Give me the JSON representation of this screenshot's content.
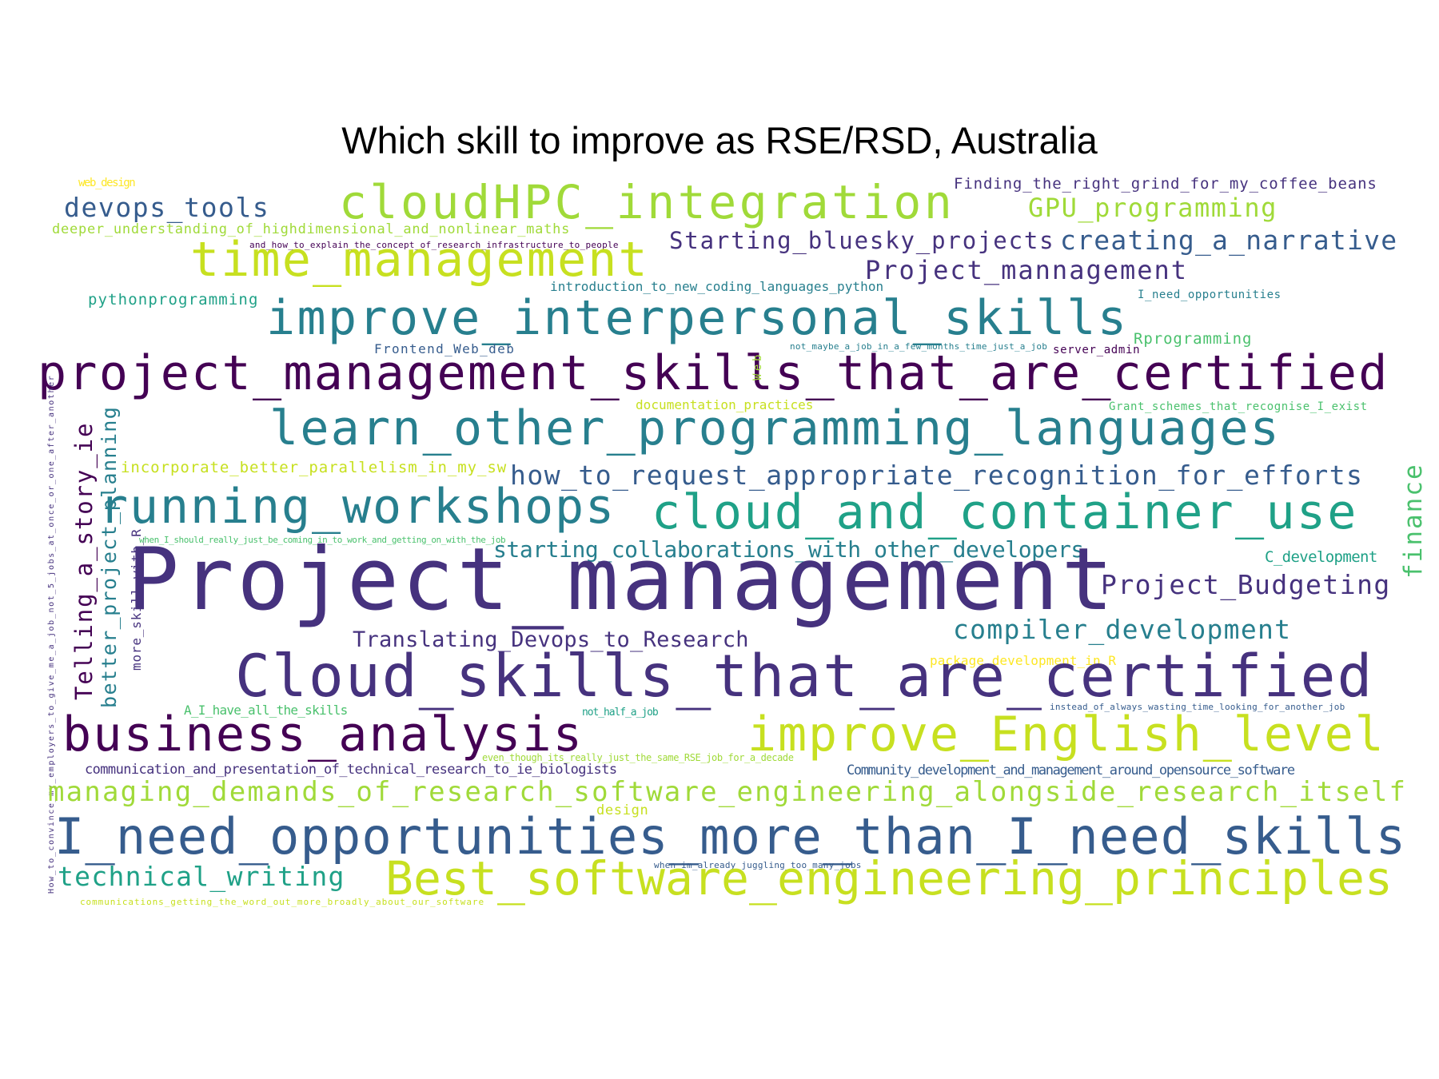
{
  "title": "Which skill to improve as RSE/RSD, Australia",
  "palette": {
    "p1": "#440154",
    "p2": "#46327e",
    "p3": "#365c8d",
    "p4": "#277f8e",
    "p5": "#1fa187",
    "p6": "#4ac16d",
    "p7": "#a0da39",
    "p8": "#c7e020",
    "p9": "#fde725"
  },
  "words": [
    {
      "text": "web_design",
      "color": "#fde725"
    },
    {
      "text": "devops_tools",
      "color": "#365c8d"
    },
    {
      "text": "cloudHPC_integration",
      "color": "#a0da39"
    },
    {
      "text": "Finding_the_right_grind_for_my_coffee_beans",
      "color": "#46327e"
    },
    {
      "text": "GPU_programming",
      "color": "#a0da39"
    },
    {
      "text": "deeper_understanding_of_highdimensional_and_nonlinear_maths",
      "color": "#a0da39"
    },
    {
      "text": "and_how_to_explain_the_concept_of_research_infrastructure_to_people",
      "color": "#440154"
    },
    {
      "text": "Starting_bluesky_projects",
      "color": "#46327e"
    },
    {
      "text": "creating_a_narrative",
      "color": "#365c8d"
    },
    {
      "text": "time_management",
      "color": "#c7e020"
    },
    {
      "text": "Project_mannagement",
      "color": "#46327e"
    },
    {
      "text": "introduction_to_new_coding_languages_python",
      "color": "#277f8e"
    },
    {
      "text": "pythonprogramming",
      "color": "#1fa187"
    },
    {
      "text": "I_need_opportunities",
      "color": "#277f8e"
    },
    {
      "text": "improve_interpersonal_skills",
      "color": "#277f8e"
    },
    {
      "text": "Frontend_Web_deb",
      "color": "#365c8d"
    },
    {
      "text": "not_maybe_a_job_in_a_few_months_time_just_a_job",
      "color": "#277f8e"
    },
    {
      "text": "server_admin",
      "color": "#440154"
    },
    {
      "text": "Rprogramming",
      "color": "#4ac16d"
    },
    {
      "text": "project_management_skills_that_are_certified",
      "color": "#440154"
    },
    {
      "text": "Web",
      "color": "#a0da39"
    },
    {
      "text": "documentation_practices",
      "color": "#c7e020"
    },
    {
      "text": "Grant_schemes_that_recognise_I_exist",
      "color": "#4ac16d"
    },
    {
      "text": "Telling_a_story_ie",
      "color": "#440154"
    },
    {
      "text": "better_project_planning",
      "color": "#277f8e"
    },
    {
      "text": "learn_other_programming_languages",
      "color": "#277f8e"
    },
    {
      "text": "incorporate_better_parallelism_in_my_sw",
      "color": "#c7e020"
    },
    {
      "text": "how_to_request_appropriate_recognition_for_efforts",
      "color": "#365c8d"
    },
    {
      "text": "finance",
      "color": "#4ac16d"
    },
    {
      "text": "running_workshops",
      "color": "#277f8e"
    },
    {
      "text": "cloud_and_container_use",
      "color": "#1fa187"
    },
    {
      "text": "more_skill_with_R",
      "color": "#46327e"
    },
    {
      "text": "when_I_should_really_just_be_coming_in_to_work_and_getting_on_with_the_job",
      "color": "#4ac16d"
    },
    {
      "text": "starting_collaborations_with_other_developers",
      "color": "#277f8e"
    },
    {
      "text": "C_development",
      "color": "#1fa187"
    },
    {
      "text": "Project_management",
      "color": "#46327e"
    },
    {
      "text": "Project_Budgeting",
      "color": "#46327e"
    },
    {
      "text": "Translating_Devops_to_Research",
      "color": "#46327e"
    },
    {
      "text": "compiler_development",
      "color": "#277f8e"
    },
    {
      "text": "How_to_convince_my_employers_to_give_me_a_job_not_5_jobs_at_once_or_one_after_another",
      "color": "#46327e"
    },
    {
      "text": "package_development_in_R",
      "color": "#fde725"
    },
    {
      "text": "Cloud_skills_that_are_certified",
      "color": "#46327e"
    },
    {
      "text": "A_I_have_all_the_skills",
      "color": "#4ac16d"
    },
    {
      "text": "not_half_a_job",
      "color": "#1fa187"
    },
    {
      "text": "instead_of_always_wasting_time_looking_for_another_job",
      "color": "#365c8d"
    },
    {
      "text": "business_analysis",
      "color": "#440154"
    },
    {
      "text": "improve_English_level",
      "color": "#c7e020"
    },
    {
      "text": "even_though_its_really_just_the_same_RSE_job_for_a_decade",
      "color": "#a0da39"
    },
    {
      "text": "communication_and_presentation_of_technical_research_to_ie_biologists",
      "color": "#46327e"
    },
    {
      "text": "Community_development_and_management_around_opensource_software",
      "color": "#365c8d"
    },
    {
      "text": "managing_demands_of_research_software_engineering_alongside_research_itself",
      "color": "#a0da39"
    },
    {
      "text": "design",
      "color": "#c7e020"
    },
    {
      "text": "I_need_opportunities_more_than_I_need_skills",
      "color": "#365c8d"
    },
    {
      "text": "when_im_already_juggling_too_many_jobs",
      "color": "#365c8d"
    },
    {
      "text": "technical_writing",
      "color": "#1fa187"
    },
    {
      "text": "Best_software_engineering_principles",
      "color": "#c7e020"
    },
    {
      "text": "communications_getting_the_word_out_more_broadly_about_our_software",
      "color": "#c7e020"
    }
  ]
}
